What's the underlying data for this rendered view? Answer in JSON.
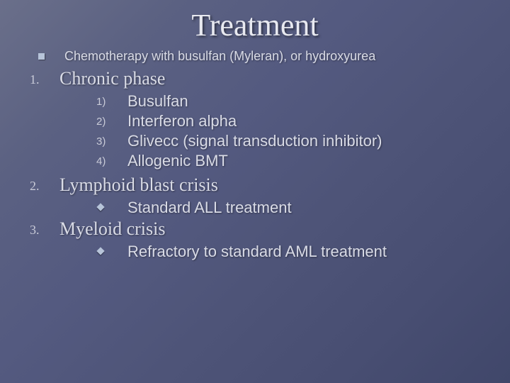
{
  "title": "Treatment",
  "bullet1": "Chemotherapy with busulfan (Myleran), or hydroxyurea",
  "sections": [
    {
      "num": "1.",
      "heading": "Chronic phase",
      "subtype": "numbered",
      "items": [
        {
          "marker": "1)",
          "text": "Busulfan"
        },
        {
          "marker": "2)",
          "text": "Interferon alpha"
        },
        {
          "marker": "3)",
          "text": "Glivecc (signal transduction inhibitor)"
        },
        {
          "marker": "4)",
          "text": "Allogenic BMT"
        }
      ]
    },
    {
      "num": "2.",
      "heading": "Lymphoid blast crisis",
      "subtype": "diamond",
      "items": [
        {
          "text": "Standard ALL treatment"
        }
      ]
    },
    {
      "num": "3.",
      "heading": "Myeloid crisis",
      "subtype": "diamond",
      "items": [
        {
          "text": "Refractory to standard AML treatment"
        }
      ]
    }
  ],
  "colors": {
    "background_from": "#6a6f8a",
    "background_to": "#40476a",
    "text": "#d9dbe6",
    "bullet": "#b7c4d9"
  },
  "fonts": {
    "title_family": "Times New Roman",
    "title_size_pt": 44,
    "heading_size_pt": 26,
    "body_size_pt": 22,
    "small_size_pt": 18
  }
}
